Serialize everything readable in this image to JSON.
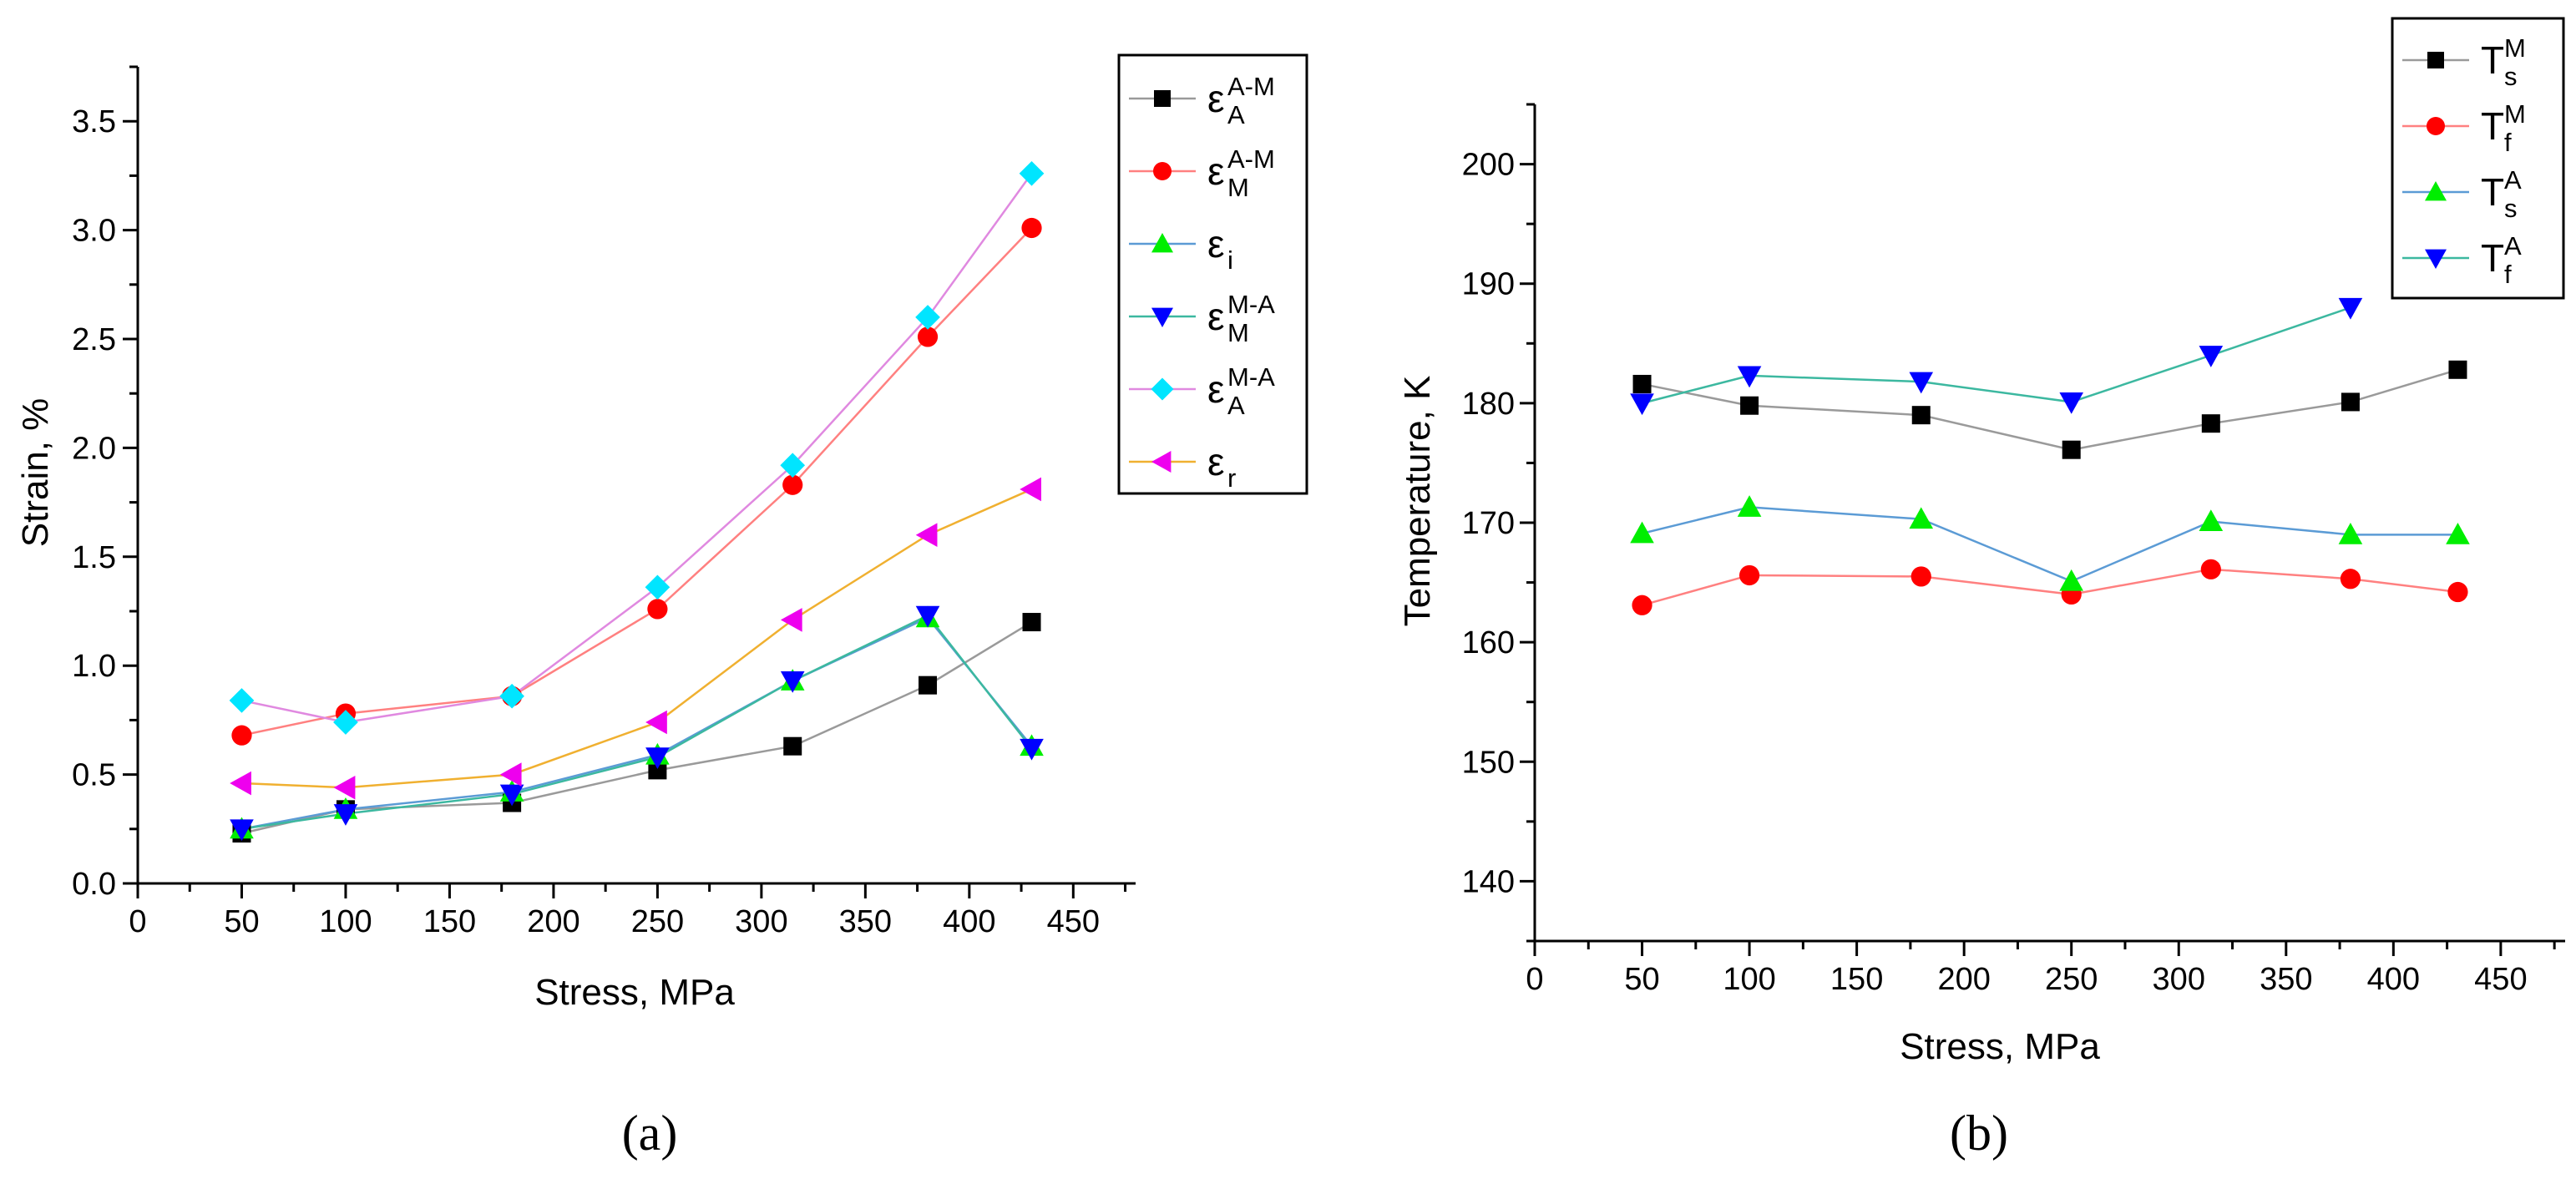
{
  "chart_data": [
    {
      "type": "line",
      "panel_label": "(a)",
      "xlabel": "Stress, MPa",
      "ylabel": "Strain, %",
      "xlim": [
        0,
        480
      ],
      "ylim": [
        0,
        3.75
      ],
      "xticks": [
        0,
        50,
        100,
        150,
        200,
        250,
        300,
        350,
        400,
        450
      ],
      "yticks": [
        0.0,
        0.5,
        1.0,
        1.5,
        2.0,
        2.5,
        3.0,
        3.5
      ],
      "xtick_labels": [
        "0",
        "50",
        "100",
        "150",
        "200",
        "250",
        "300",
        "350",
        "400",
        "450"
      ],
      "ytick_labels": [
        "0.0",
        "0.5",
        "1.0",
        "1.5",
        "2.0",
        "2.5",
        "3.0",
        "3.5"
      ],
      "legend_position": "top-right",
      "x": [
        50,
        100,
        180,
        250,
        315,
        380,
        430
      ],
      "series": [
        {
          "name": "ε_A^A-M",
          "base": "ε",
          "sub": "A",
          "sup": "A-M",
          "marker": "square",
          "marker_color": "#000000",
          "line_color": "#9a9a9a",
          "values": [
            0.23,
            0.34,
            0.37,
            0.52,
            0.63,
            0.91,
            1.2
          ]
        },
        {
          "name": "ε_M^A-M",
          "base": "ε",
          "sub": "M",
          "sup": "A-M",
          "marker": "circle",
          "marker_color": "#ff0000",
          "line_color": "#ff8080",
          "values": [
            0.68,
            0.78,
            0.86,
            1.26,
            1.83,
            2.51,
            3.01
          ]
        },
        {
          "name": "ε_i",
          "base": "ε",
          "sub": "i",
          "sup": "",
          "marker": "triangle-up",
          "marker_color": "#00ee00",
          "line_color": "#5b9bd5",
          "values": [
            0.25,
            0.34,
            0.42,
            0.59,
            0.93,
            1.22,
            0.63
          ]
        },
        {
          "name": "ε_M^M-A",
          "base": "ε",
          "sub": "M",
          "sup": "M-A",
          "marker": "triangle-down",
          "marker_color": "#0000ff",
          "line_color": "#3cb8a0",
          "values": [
            0.25,
            0.32,
            0.41,
            0.58,
            0.93,
            1.23,
            0.62
          ]
        },
        {
          "name": "ε_A^M-A",
          "base": "ε",
          "sub": "A",
          "sup": "M-A",
          "marker": "diamond",
          "marker_color": "#00e5ff",
          "line_color": "#e089e0",
          "values": [
            0.84,
            0.74,
            0.86,
            1.36,
            1.92,
            2.6,
            3.26
          ]
        },
        {
          "name": "ε_r",
          "base": "ε",
          "sub": "r",
          "sup": "",
          "marker": "triangle-left",
          "marker_color": "#ee00ee",
          "line_color": "#f0b030",
          "values": [
            0.46,
            0.44,
            0.5,
            0.74,
            1.21,
            1.6,
            1.81
          ]
        }
      ]
    },
    {
      "type": "line",
      "panel_label": "(b)",
      "xlabel": "Stress, MPa",
      "ylabel": "Temperature, K",
      "xlim": [
        0,
        480
      ],
      "ylim": [
        135,
        205
      ],
      "xticks": [
        0,
        50,
        100,
        150,
        200,
        250,
        300,
        350,
        400,
        450
      ],
      "yticks": [
        140,
        150,
        160,
        170,
        180,
        190,
        200
      ],
      "xtick_labels": [
        "0",
        "50",
        "100",
        "150",
        "200",
        "250",
        "300",
        "350",
        "400",
        "450"
      ],
      "ytick_labels": [
        "140",
        "150",
        "160",
        "170",
        "180",
        "190",
        "200"
      ],
      "legend_position": "top-right",
      "x": [
        50,
        100,
        180,
        250,
        315,
        380,
        430
      ],
      "series": [
        {
          "name": "T_s^M",
          "base": "T",
          "sub": "s",
          "sup": "M",
          "marker": "square",
          "marker_color": "#000000",
          "line_color": "#9a9a9a",
          "values": [
            181.6,
            179.8,
            179.0,
            176.1,
            178.3,
            180.1,
            182.8
          ]
        },
        {
          "name": "T_f^M",
          "base": "T",
          "sub": "f",
          "sup": "M",
          "marker": "circle",
          "marker_color": "#ff0000",
          "line_color": "#ff8080",
          "values": [
            163.1,
            165.6,
            165.5,
            164.0,
            166.1,
            165.3,
            164.2
          ]
        },
        {
          "name": "T_s^A",
          "base": "T",
          "sub": "s",
          "sup": "A",
          "marker": "triangle-up",
          "marker_color": "#00ee00",
          "line_color": "#5b9bd5",
          "values": [
            169.1,
            171.3,
            170.3,
            165.1,
            170.1,
            169.0,
            169.0
          ]
        },
        {
          "name": "T_f^A",
          "base": "T",
          "sub": "f",
          "sup": "A",
          "marker": "triangle-down",
          "marker_color": "#0000ff",
          "line_color": "#3cb8a0",
          "x": [
            50,
            100,
            180,
            250,
            315,
            380
          ],
          "values": [
            180.0,
            182.3,
            181.8,
            180.1,
            184.0,
            188.0
          ]
        }
      ]
    }
  ]
}
